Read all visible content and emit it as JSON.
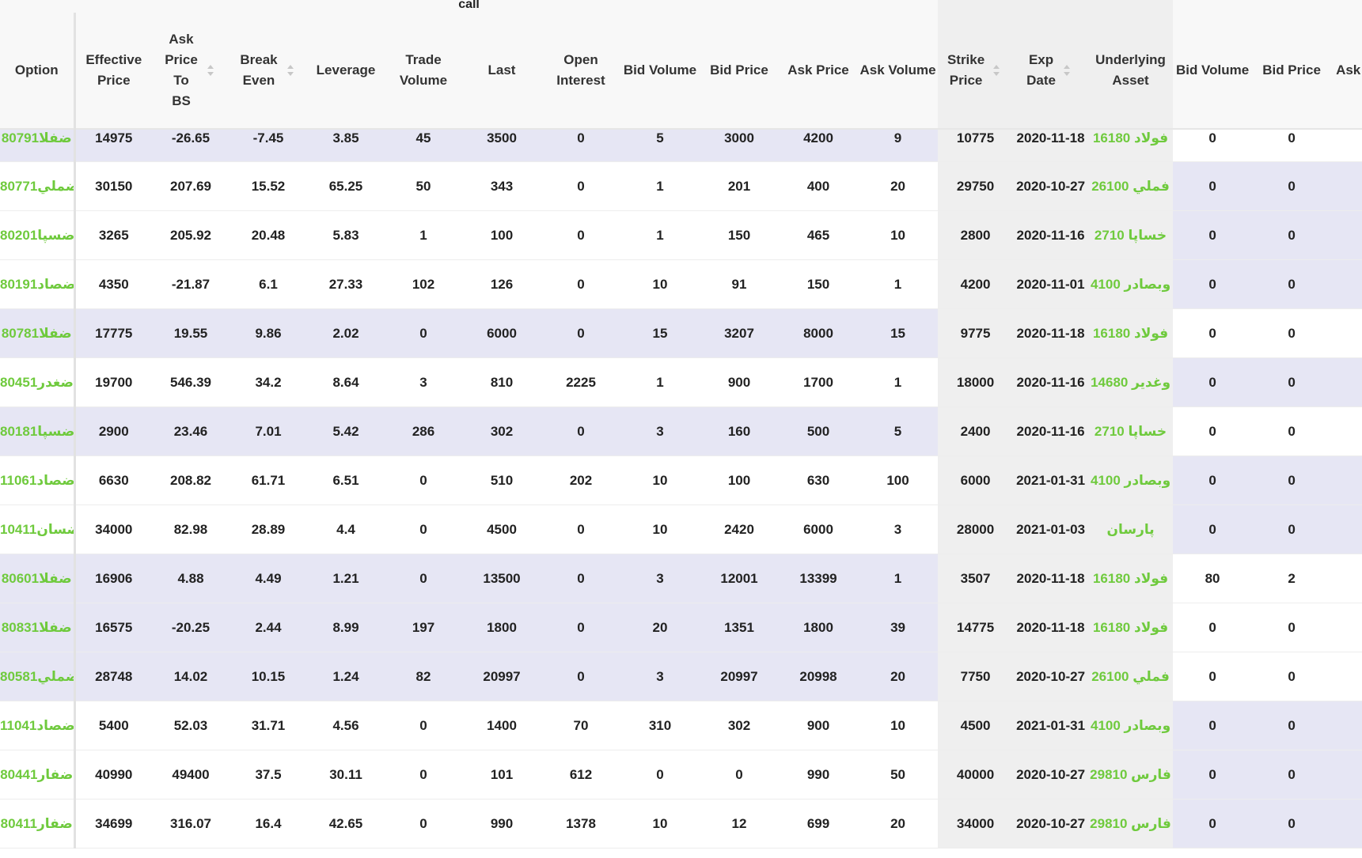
{
  "group_label": "call",
  "columns": {
    "option": "Option",
    "effective_price": "Effective Price",
    "ask_price_to_bs": [
      "Ask",
      "Price",
      "To",
      "BS"
    ],
    "break_even": "Break Even",
    "leverage": "Leverage",
    "trade_volume": "Trade Volume",
    "last": "Last",
    "open_interest": "Open Interest",
    "bid_volume": "Bid Volume",
    "bid_price": "Bid Price",
    "ask_price": "Ask Price",
    "ask_volume": "Ask Volume",
    "strike_price": "Strike Price",
    "exp_date": "Exp Date",
    "underlying_asset": "Underlying Asset",
    "put_bid_volume": "Bid Volume",
    "put_bid_price": "Bid Price",
    "put_ask_partial": "Ask"
  },
  "colors": {
    "link": "#6fca3d",
    "stripe": "#e6e6f4",
    "middle_band": "#efefef"
  },
  "rows": [
    {
      "option": "ضفلا80791",
      "effective_price": "14975",
      "ask_price_to_bs": "-26.65",
      "break_even": "-7.45",
      "leverage": "3.85",
      "trade_volume": "45",
      "last": "3500",
      "open_interest": "0",
      "bid_volume": "5",
      "bid_price": "3000",
      "ask_price": "4200",
      "ask_volume": "9",
      "strike_price": "10775",
      "exp_date": "2020-11-18",
      "underlying": "فولاد 16180",
      "put_bid_volume": "0",
      "put_bid_price": "0"
    },
    {
      "option": "ضملي80771",
      "effective_price": "30150",
      "ask_price_to_bs": "207.69",
      "break_even": "15.52",
      "leverage": "65.25",
      "trade_volume": "50",
      "last": "343",
      "open_interest": "0",
      "bid_volume": "1",
      "bid_price": "201",
      "ask_price": "400",
      "ask_volume": "20",
      "strike_price": "29750",
      "exp_date": "2020-10-27",
      "underlying": "فملي 26100",
      "put_bid_volume": "0",
      "put_bid_price": "0"
    },
    {
      "option": "ضسپا80201",
      "effective_price": "3265",
      "ask_price_to_bs": "205.92",
      "break_even": "20.48",
      "leverage": "5.83",
      "trade_volume": "1",
      "last": "100",
      "open_interest": "0",
      "bid_volume": "1",
      "bid_price": "150",
      "ask_price": "465",
      "ask_volume": "10",
      "strike_price": "2800",
      "exp_date": "2020-11-16",
      "underlying": "خساپا 2710",
      "put_bid_volume": "0",
      "put_bid_price": "0"
    },
    {
      "option": "ضصاد80191",
      "effective_price": "4350",
      "ask_price_to_bs": "-21.87",
      "break_even": "6.1",
      "leverage": "27.33",
      "trade_volume": "102",
      "last": "126",
      "open_interest": "0",
      "bid_volume": "10",
      "bid_price": "91",
      "ask_price": "150",
      "ask_volume": "1",
      "strike_price": "4200",
      "exp_date": "2020-11-01",
      "underlying": "وبصادر 4100",
      "put_bid_volume": "0",
      "put_bid_price": "0"
    },
    {
      "option": "ضفلا80781",
      "effective_price": "17775",
      "ask_price_to_bs": "19.55",
      "break_even": "9.86",
      "leverage": "2.02",
      "trade_volume": "0",
      "last": "6000",
      "open_interest": "0",
      "bid_volume": "15",
      "bid_price": "3207",
      "ask_price": "8000",
      "ask_volume": "15",
      "strike_price": "9775",
      "exp_date": "2020-11-18",
      "underlying": "فولاد 16180",
      "put_bid_volume": "0",
      "put_bid_price": "0"
    },
    {
      "option": "ضغدر80451",
      "effective_price": "19700",
      "ask_price_to_bs": "546.39",
      "break_even": "34.2",
      "leverage": "8.64",
      "trade_volume": "3",
      "last": "810",
      "open_interest": "2225",
      "bid_volume": "1",
      "bid_price": "900",
      "ask_price": "1700",
      "ask_volume": "1",
      "strike_price": "18000",
      "exp_date": "2020-11-16",
      "underlying": "وغدير 14680",
      "put_bid_volume": "0",
      "put_bid_price": "0"
    },
    {
      "option": "ضسپا80181",
      "effective_price": "2900",
      "ask_price_to_bs": "23.46",
      "break_even": "7.01",
      "leverage": "5.42",
      "trade_volume": "286",
      "last": "302",
      "open_interest": "0",
      "bid_volume": "3",
      "bid_price": "160",
      "ask_price": "500",
      "ask_volume": "5",
      "strike_price": "2400",
      "exp_date": "2020-11-16",
      "underlying": "خساپا 2710",
      "put_bid_volume": "0",
      "put_bid_price": "0"
    },
    {
      "option": "ضصاد11061",
      "effective_price": "6630",
      "ask_price_to_bs": "208.82",
      "break_even": "61.71",
      "leverage": "6.51",
      "trade_volume": "0",
      "last": "510",
      "open_interest": "202",
      "bid_volume": "10",
      "bid_price": "100",
      "ask_price": "630",
      "ask_volume": "100",
      "strike_price": "6000",
      "exp_date": "2021-01-31",
      "underlying": "وبصادر 4100",
      "put_bid_volume": "0",
      "put_bid_price": "0"
    },
    {
      "option": "ضسان10411",
      "effective_price": "34000",
      "ask_price_to_bs": "82.98",
      "break_even": "28.89",
      "leverage": "4.4",
      "trade_volume": "0",
      "last": "4500",
      "open_interest": "0",
      "bid_volume": "10",
      "bid_price": "2420",
      "ask_price": "6000",
      "ask_volume": "3",
      "strike_price": "28000",
      "exp_date": "2021-01-03",
      "underlying": "پارسان",
      "put_bid_volume": "0",
      "put_bid_price": "0"
    },
    {
      "option": "ضفلا80601",
      "effective_price": "16906",
      "ask_price_to_bs": "4.88",
      "break_even": "4.49",
      "leverage": "1.21",
      "trade_volume": "0",
      "last": "13500",
      "open_interest": "0",
      "bid_volume": "3",
      "bid_price": "12001",
      "ask_price": "13399",
      "ask_volume": "1",
      "strike_price": "3507",
      "exp_date": "2020-11-18",
      "underlying": "فولاد 16180",
      "put_bid_volume": "80",
      "put_bid_price": "2"
    },
    {
      "option": "ضفلا80831",
      "effective_price": "16575",
      "ask_price_to_bs": "-20.25",
      "break_even": "2.44",
      "leverage": "8.99",
      "trade_volume": "197",
      "last": "1800",
      "open_interest": "0",
      "bid_volume": "20",
      "bid_price": "1351",
      "ask_price": "1800",
      "ask_volume": "39",
      "strike_price": "14775",
      "exp_date": "2020-11-18",
      "underlying": "فولاد 16180",
      "put_bid_volume": "0",
      "put_bid_price": "0"
    },
    {
      "option": "ضملي80581",
      "effective_price": "28748",
      "ask_price_to_bs": "14.02",
      "break_even": "10.15",
      "leverage": "1.24",
      "trade_volume": "82",
      "last": "20997",
      "open_interest": "0",
      "bid_volume": "3",
      "bid_price": "20997",
      "ask_price": "20998",
      "ask_volume": "20",
      "strike_price": "7750",
      "exp_date": "2020-10-27",
      "underlying": "فملي 26100",
      "put_bid_volume": "0",
      "put_bid_price": "0"
    },
    {
      "option": "ضصاد11041",
      "effective_price": "5400",
      "ask_price_to_bs": "52.03",
      "break_even": "31.71",
      "leverage": "4.56",
      "trade_volume": "0",
      "last": "1400",
      "open_interest": "70",
      "bid_volume": "310",
      "bid_price": "302",
      "ask_price": "900",
      "ask_volume": "10",
      "strike_price": "4500",
      "exp_date": "2021-01-31",
      "underlying": "وبصادر 4100",
      "put_bid_volume": "0",
      "put_bid_price": "0"
    },
    {
      "option": "ضفار80441",
      "effective_price": "40990",
      "ask_price_to_bs": "49400",
      "break_even": "37.5",
      "leverage": "30.11",
      "trade_volume": "0",
      "last": "101",
      "open_interest": "612",
      "bid_volume": "0",
      "bid_price": "0",
      "ask_price": "990",
      "ask_volume": "50",
      "strike_price": "40000",
      "exp_date": "2020-10-27",
      "underlying": "فارس 29810",
      "put_bid_volume": "0",
      "put_bid_price": "0"
    },
    {
      "option": "ضفار80411",
      "effective_price": "34699",
      "ask_price_to_bs": "316.07",
      "break_even": "16.4",
      "leverage": "42.65",
      "trade_volume": "0",
      "last": "990",
      "open_interest": "1378",
      "bid_volume": "10",
      "bid_price": "12",
      "ask_price": "699",
      "ask_volume": "20",
      "strike_price": "34000",
      "exp_date": "2020-10-27",
      "underlying": "فارس 29810",
      "put_bid_volume": "0",
      "put_bid_price": "0"
    }
  ]
}
